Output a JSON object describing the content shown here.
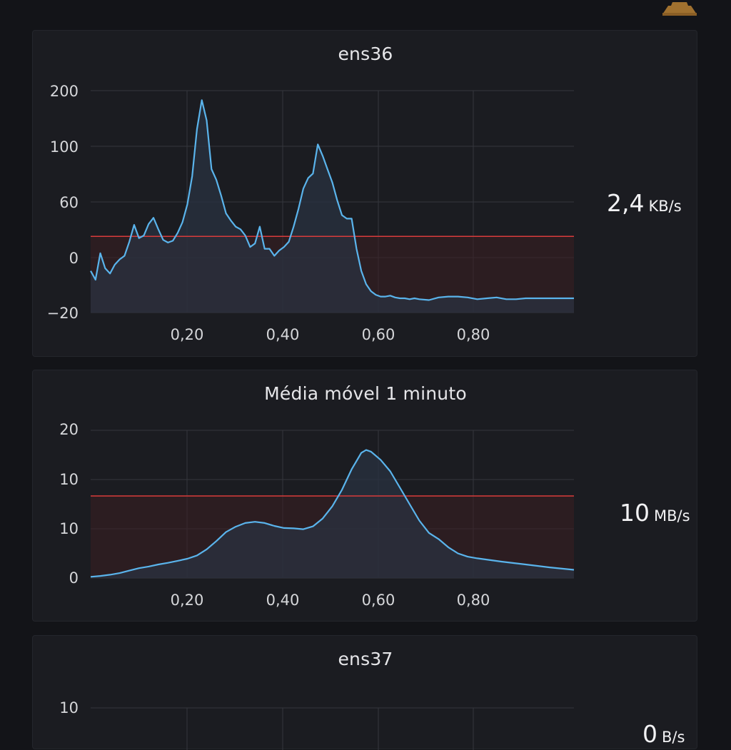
{
  "panels": [
    {
      "title": "ens36",
      "stat_value": "2,4",
      "stat_unit": "KB/s",
      "y_tick_labels": [
        "200",
        "100",
        "60",
        "0",
        "−20"
      ],
      "x_tick_labels": [
        "0,20",
        "0,40",
        "0,60",
        "0,80"
      ],
      "x": [
        0,
        0.01,
        0.02,
        0.03,
        0.04,
        0.05,
        0.06,
        0.07,
        0.08,
        0.09,
        0.1,
        0.11,
        0.12,
        0.13,
        0.14,
        0.15,
        0.16,
        0.17,
        0.18,
        0.19,
        0.2,
        0.21,
        0.22,
        0.23,
        0.24,
        0.25,
        0.26,
        0.27,
        0.28,
        0.29,
        0.3,
        0.31,
        0.32,
        0.33,
        0.34,
        0.35,
        0.36,
        0.37,
        0.38,
        0.39,
        0.4,
        0.41,
        0.42,
        0.43,
        0.44,
        0.45,
        0.46,
        0.47,
        0.48,
        0.49,
        0.5,
        0.51,
        0.52,
        0.53,
        0.54,
        0.55,
        0.56,
        0.57,
        0.58,
        0.59,
        0.6,
        0.61,
        0.62,
        0.63,
        0.64,
        0.65,
        0.66,
        0.67,
        0.68,
        0.7,
        0.72,
        0.74,
        0.76,
        0.78,
        0.8,
        0.82,
        0.84,
        0.86,
        0.88,
        0.9,
        0.92,
        0.94,
        0.96,
        0.98,
        1.0
      ],
      "y": [
        -15,
        -25,
        5,
        -12,
        -18,
        -8,
        -2,
        2,
        18,
        37,
        22,
        25,
        38,
        45,
        32,
        20,
        17,
        19,
        28,
        40,
        60,
        92,
        145,
        178,
        155,
        100,
        88,
        70,
        50,
        42,
        35,
        32,
        25,
        12,
        16,
        35,
        10,
        10,
        2,
        8,
        12,
        18,
        35,
        55,
        78,
        90,
        95,
        128,
        115,
        100,
        85,
        65,
        48,
        44,
        44,
        10,
        -15,
        -30,
        -38,
        -42,
        -44,
        -44,
        -43,
        -45,
        -46,
        -46,
        -47,
        -46,
        -47,
        -48,
        -45,
        -44,
        -44,
        -45,
        -47,
        -46,
        -45,
        -47,
        -47,
        -46,
        -46,
        -46,
        -46,
        -46,
        -46
      ],
      "threshold": 24,
      "colors": {
        "line": "#5ab4ec",
        "threshold": "#d83b3b",
        "threshold_fill": "#3a1f23",
        "area": "#2a3240"
      }
    },
    {
      "title": "Média móvel 1 minuto",
      "stat_value": "10",
      "stat_unit": "MB/s",
      "y_tick_labels": [
        "20",
        "10",
        "10",
        "0"
      ],
      "x_tick_labels": [
        "0,20",
        "0,40",
        "0,60",
        "0,80"
      ],
      "x": [
        0,
        0.02,
        0.04,
        0.06,
        0.08,
        0.1,
        0.12,
        0.14,
        0.16,
        0.18,
        0.2,
        0.22,
        0.24,
        0.26,
        0.28,
        0.3,
        0.32,
        0.34,
        0.36,
        0.38,
        0.4,
        0.42,
        0.44,
        0.46,
        0.48,
        0.5,
        0.52,
        0.54,
        0.55,
        0.56,
        0.57,
        0.58,
        0.6,
        0.62,
        0.64,
        0.66,
        0.68,
        0.7,
        0.72,
        0.74,
        0.76,
        0.78,
        0.8,
        0.85,
        0.9,
        0.95,
        1.0
      ],
      "y": [
        0.3,
        0.5,
        0.8,
        1.2,
        1.8,
        2.4,
        2.8,
        3.3,
        3.7,
        4.2,
        4.7,
        5.5,
        7,
        9,
        11.2,
        12.5,
        13.4,
        13.7,
        13.4,
        12.7,
        12.2,
        12.1,
        11.9,
        12.6,
        14.5,
        17.5,
        21.5,
        26.5,
        28.5,
        30.5,
        31.2,
        30.8,
        28.8,
        26,
        22,
        18,
        14,
        11,
        9.5,
        7.5,
        6,
        5.2,
        4.8,
        4,
        3.3,
        2.6,
        2.0
      ],
      "threshold": 20,
      "colors": {
        "line": "#5ab4ec",
        "threshold": "#d83b3b",
        "threshold_fill": "#3a1f23",
        "area": "#2a3240"
      }
    },
    {
      "title": "ens37",
      "stat_value": "0",
      "stat_unit": "B/s",
      "y_tick_labels": [
        "10"
      ]
    }
  ]
}
